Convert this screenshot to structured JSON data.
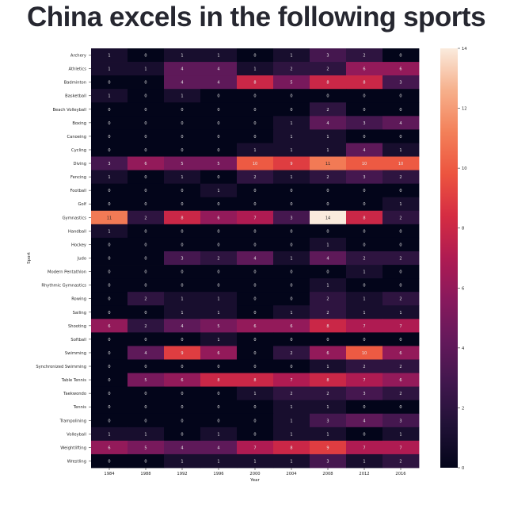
{
  "page": {
    "title": "China excels in the following sports"
  },
  "chart_data": {
    "type": "heatmap",
    "xlabel": "Year",
    "ylabel": "Sport",
    "x_categories": [
      "1984",
      "1988",
      "1992",
      "1996",
      "2000",
      "2004",
      "2008",
      "2012",
      "2016"
    ],
    "y_categories": [
      "Archery",
      "Athletics",
      "Badminton",
      "Basketball",
      "Beach Volleyball",
      "Boxing",
      "Canoeing",
      "Cycling",
      "Diving",
      "Fencing",
      "Football",
      "Golf",
      "Gymnastics",
      "Handball",
      "Hockey",
      "Judo",
      "Modern Pentathlon",
      "Rhythmic Gymnastics",
      "Rowing",
      "Sailing",
      "Shooting",
      "Softball",
      "Swimming",
      "Synchronized Swimming",
      "Table Tennis",
      "Taekwondo",
      "Tennis",
      "Trampolining",
      "Volleyball",
      "Weightlifting",
      "Wrestling"
    ],
    "values": [
      [
        1,
        0,
        1,
        1,
        0,
        1,
        3,
        2,
        0
      ],
      [
        1,
        1,
        4,
        4,
        1,
        2,
        2,
        6,
        6
      ],
      [
        0,
        0,
        4,
        4,
        8,
        5,
        8,
        8,
        3
      ],
      [
        1,
        0,
        1,
        0,
        0,
        0,
        0,
        0,
        0
      ],
      [
        0,
        0,
        0,
        0,
        0,
        0,
        2,
        0,
        0
      ],
      [
        0,
        0,
        0,
        0,
        0,
        1,
        4,
        3,
        4
      ],
      [
        0,
        0,
        0,
        0,
        0,
        1,
        1,
        0,
        0
      ],
      [
        0,
        0,
        0,
        0,
        1,
        1,
        1,
        4,
        1
      ],
      [
        3,
        6,
        5,
        5,
        10,
        9,
        11,
        10,
        10
      ],
      [
        1,
        0,
        1,
        0,
        2,
        1,
        2,
        3,
        2
      ],
      [
        0,
        0,
        0,
        1,
        0,
        0,
        0,
        0,
        0
      ],
      [
        0,
        0,
        0,
        0,
        0,
        0,
        0,
        0,
        1
      ],
      [
        11,
        2,
        8,
        6,
        7,
        3,
        14,
        8,
        2
      ],
      [
        1,
        0,
        0,
        0,
        0,
        0,
        0,
        0,
        0
      ],
      [
        0,
        0,
        0,
        0,
        0,
        0,
        1,
        0,
        0
      ],
      [
        0,
        0,
        3,
        2,
        4,
        1,
        4,
        2,
        2
      ],
      [
        0,
        0,
        0,
        0,
        0,
        0,
        0,
        1,
        0
      ],
      [
        0,
        0,
        0,
        0,
        0,
        0,
        1,
        0,
        0
      ],
      [
        0,
        2,
        1,
        1,
        0,
        0,
        2,
        1,
        2
      ],
      [
        0,
        0,
        1,
        1,
        0,
        1,
        2,
        1,
        1
      ],
      [
        6,
        2,
        4,
        5,
        6,
        6,
        8,
        7,
        7
      ],
      [
        0,
        0,
        0,
        1,
        0,
        0,
        0,
        0,
        0
      ],
      [
        0,
        4,
        9,
        6,
        0,
        2,
        6,
        10,
        6
      ],
      [
        0,
        0,
        0,
        0,
        0,
        0,
        1,
        2,
        2
      ],
      [
        0,
        5,
        6,
        8,
        8,
        7,
        8,
        7,
        6
      ],
      [
        0,
        0,
        0,
        0,
        1,
        2,
        2,
        3,
        2
      ],
      [
        0,
        0,
        0,
        0,
        0,
        1,
        1,
        0,
        0
      ],
      [
        0,
        0,
        0,
        0,
        0,
        1,
        3,
        4,
        3
      ],
      [
        1,
        1,
        0,
        1,
        0,
        1,
        1,
        0,
        1
      ],
      [
        6,
        5,
        4,
        4,
        7,
        8,
        9,
        7,
        7
      ],
      [
        0,
        0,
        1,
        1,
        1,
        1,
        3,
        1,
        2
      ]
    ],
    "colorbar": {
      "range": [
        0,
        14
      ],
      "ticks": [
        "0",
        "2",
        "4",
        "6",
        "8",
        "10",
        "12",
        "14"
      ]
    },
    "colormap": "rocket",
    "annotations": true
  }
}
